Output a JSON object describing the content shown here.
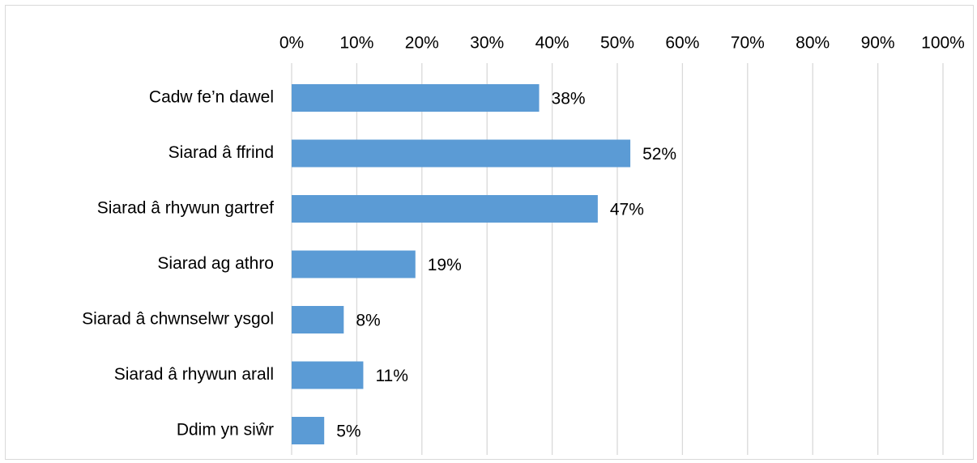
{
  "chart_data": {
    "type": "bar",
    "orientation": "horizontal",
    "title": "",
    "xlabel": "",
    "ylabel": "",
    "xlim": [
      0,
      100
    ],
    "x_ticks": [
      "0%",
      "10%",
      "20%",
      "30%",
      "40%",
      "50%",
      "60%",
      "70%",
      "80%",
      "90%",
      "100%"
    ],
    "x_tick_values": [
      0,
      10,
      20,
      30,
      40,
      50,
      60,
      70,
      80,
      90,
      100
    ],
    "x_axis_position": "top",
    "grid": true,
    "legend": "none",
    "bar_color": "#5b9bd5",
    "gridline_color": "#d9d9d9",
    "categories": [
      "Cadw fe’n dawel",
      "Siarad â ffrind",
      "Siarad â rhywun gartref",
      "Siarad ag athro",
      "Siarad â chwnselwr ysgol",
      "Siarad â rhywun arall",
      "Ddim yn siŵr"
    ],
    "values": [
      38,
      52,
      47,
      19,
      8,
      11,
      5
    ],
    "data_labels": [
      "38%",
      "52%",
      "47%",
      "19%",
      "8%",
      "11%",
      "5%"
    ]
  }
}
